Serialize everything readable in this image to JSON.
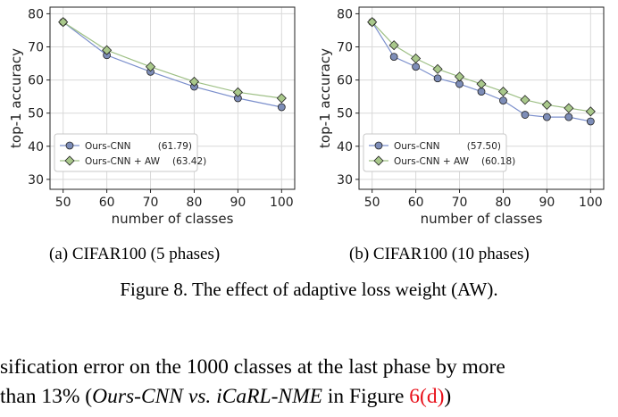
{
  "chart_data": [
    {
      "type": "line",
      "x": [
        50,
        60,
        70,
        80,
        90,
        100
      ],
      "xlabel": "number of classes",
      "ylabel": "top-1 accuracy",
      "xlim": [
        47,
        103
      ],
      "ylim": [
        27,
        82
      ],
      "xticks": [
        50,
        60,
        70,
        80,
        90,
        100
      ],
      "yticks": [
        30,
        40,
        50,
        60,
        70,
        80
      ],
      "grid": true,
      "legend_position": "bottom-left",
      "series": [
        {
          "name": "Ours-CNN",
          "score": "(61.79)",
          "color": "#7b8fcc",
          "fill": "#7d8db8",
          "marker": "circle",
          "values": [
            77.5,
            67.5,
            62.5,
            58.0,
            54.5,
            51.8
          ]
        },
        {
          "name": "Ours-CNN + AW",
          "score": "(63.42)",
          "color": "#9dbf84",
          "fill": "#a9c88b",
          "marker": "diamond",
          "values": [
            77.5,
            69.0,
            64.0,
            59.5,
            56.3,
            54.5
          ]
        }
      ]
    },
    {
      "type": "line",
      "x": [
        50,
        55,
        60,
        65,
        70,
        75,
        80,
        85,
        90,
        95,
        100
      ],
      "xlabel": "number of classes",
      "ylabel": "top-1 accuracy",
      "xlim": [
        47,
        103
      ],
      "ylim": [
        27,
        82
      ],
      "xticks": [
        50,
        60,
        70,
        80,
        90,
        100
      ],
      "yticks": [
        30,
        40,
        50,
        60,
        70,
        80
      ],
      "grid": true,
      "legend_position": "bottom-left",
      "series": [
        {
          "name": "Ours-CNN",
          "score": "(57.50)",
          "color": "#7b8fcc",
          "fill": "#7d8db8",
          "marker": "circle",
          "values": [
            77.5,
            67.0,
            64.0,
            60.5,
            58.8,
            56.5,
            53.8,
            49.5,
            48.8,
            48.8,
            47.5
          ]
        },
        {
          "name": "Ours-CNN + AW",
          "score": "(60.18)",
          "color": "#9dbf84",
          "fill": "#a9c88b",
          "marker": "diamond",
          "values": [
            77.5,
            70.5,
            66.5,
            63.3,
            61.0,
            58.8,
            56.5,
            54.0,
            52.5,
            51.5,
            50.5
          ]
        }
      ]
    }
  ],
  "subcaptions": {
    "a": "(a)  CIFAR100 (5 phases)",
    "b": "(b)  CIFAR100 (10 phases)"
  },
  "figure_caption": "Figure 8. The effect of adaptive loss weight (AW).",
  "body_text": {
    "line1": "sification error on the 1000 classes at the last phase by more",
    "line2_prefix": "than 13% (",
    "line2_italic": "Ours-CNN vs. iCaRL-NME",
    "line2_mid": " in Figure ",
    "line2_ref": "6(d)",
    "line2_suffix": ")"
  }
}
